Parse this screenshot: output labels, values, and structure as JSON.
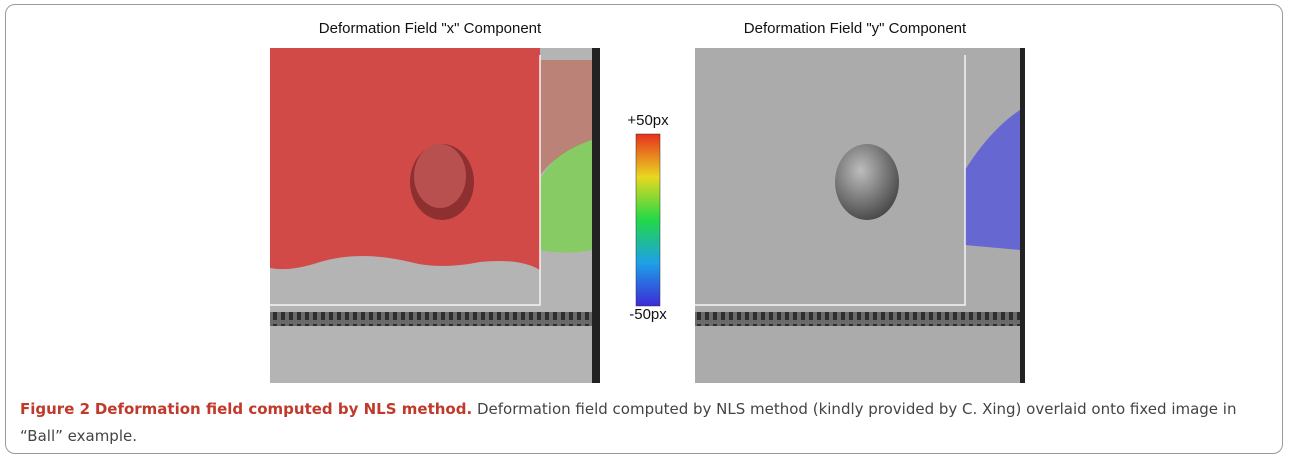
{
  "figure": {
    "panels": [
      {
        "title": "Deformation Field \"x\" Component"
      },
      {
        "title": "Deformation Field \"y\" Component"
      }
    ],
    "colorbar": {
      "max_label": "+50px",
      "min_label": "-50px"
    },
    "caption": {
      "label": "Figure 2",
      "title": "Deformation field computed by NLS method.",
      "text": "Deformation field computed by NLS method (kindly provided by C. Xing) overlaid onto fixed image in “Ball” example."
    }
  }
}
